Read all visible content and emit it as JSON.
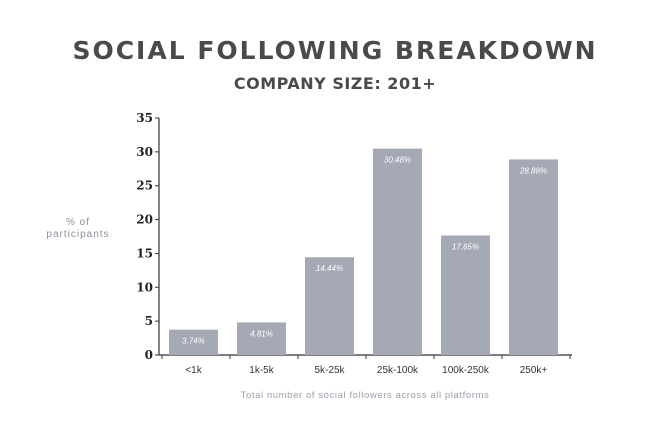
{
  "chart_data": {
    "type": "bar",
    "title": "SOCIAL FOLLOWING BREAKDOWN",
    "subtitle": "COMPANY SIZE: 201+",
    "ylabel": "% of participants",
    "xlabel": "Total number of social followers across all platforms",
    "categories": [
      "<1k",
      "1k-5k",
      "5k-25k",
      "25k-100k",
      "100k-250k",
      "250k+"
    ],
    "values": [
      3.74,
      4.81,
      14.44,
      30.48,
      17.65,
      28.88
    ],
    "data_labels": [
      "3.74%",
      "4.81%",
      "14.44%",
      "30.48%",
      "17.65%",
      "28.88%"
    ],
    "yticks": [
      0,
      5,
      10,
      15,
      20,
      25,
      30,
      35
    ],
    "ylim": [
      0,
      35
    ],
    "grid": false,
    "bar_color": "#a4a9b5"
  }
}
